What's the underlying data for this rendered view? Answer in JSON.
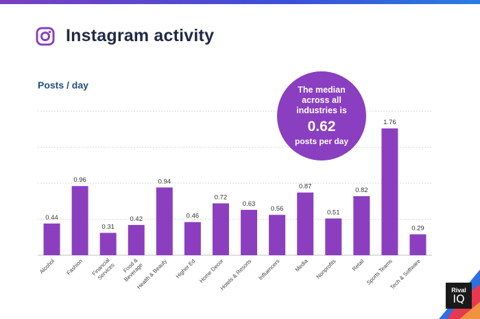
{
  "header": {
    "title": "Instagram activity",
    "icon": "instagram-icon",
    "accent": "#8b3fbf"
  },
  "chart_data": {
    "type": "bar",
    "title": "Instagram activity",
    "xlabel": "",
    "ylabel": "Posts / day",
    "ylim": [
      0,
      2
    ],
    "grid": true,
    "bar_color": "#8b3fbf",
    "categories": [
      "Alcohol",
      "Fashion",
      "Financial Services",
      "Food & Beverage",
      "Health & Beauty",
      "Higher Ed",
      "Home Decor",
      "Hotels & Resorts",
      "Influencers",
      "Media",
      "Nonprofits",
      "Retail",
      "Sports Teams",
      "Tech & Software"
    ],
    "category_lines": [
      [
        "Alcohol"
      ],
      [
        "Fashion"
      ],
      [
        "Financial",
        "Services"
      ],
      [
        "Food &",
        "Beverage"
      ],
      [
        "Health & Beauty"
      ],
      [
        "Higher Ed"
      ],
      [
        "Home Decor"
      ],
      [
        "Hotels & Resorts"
      ],
      [
        "Influencers"
      ],
      [
        "Media"
      ],
      [
        "Nonprofits"
      ],
      [
        "Retail"
      ],
      [
        "Sports Teams"
      ],
      [
        "Tech & Software"
      ]
    ],
    "values": [
      0.44,
      0.96,
      0.31,
      0.42,
      0.94,
      0.46,
      0.72,
      0.63,
      0.56,
      0.87,
      0.51,
      0.82,
      1.76,
      0.29
    ],
    "value_labels": [
      "0.44",
      "0.96",
      "0.31",
      "0.42",
      "0.94",
      "0.46",
      "0.72",
      "0.63",
      "0.56",
      "0.87",
      "0.51",
      "0.82",
      "1.76",
      "0.29"
    ],
    "annotation": {
      "text": "The median across all industries is",
      "value": "0.62",
      "unit": "posts per day",
      "color": "#8a3fc0"
    }
  },
  "branding": {
    "logo_line1": "Rival",
    "logo_line2": "IQ"
  }
}
